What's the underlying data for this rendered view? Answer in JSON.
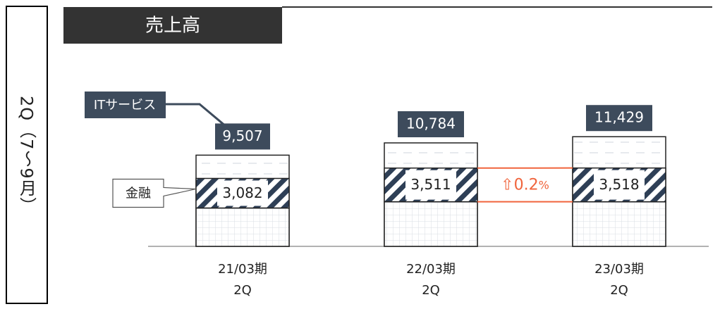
{
  "chart_data": {
    "type": "stacked_bar",
    "title": "売上高",
    "side_label": "2Q（7～9月）",
    "categories": [
      [
        "21/03期",
        "2Q"
      ],
      [
        "22/03期",
        "2Q"
      ],
      [
        "23/03期",
        "2Q"
      ]
    ],
    "totals": {
      "name": "ITサービス",
      "values": [
        9507,
        10784,
        11429
      ],
      "value_labels": [
        "9,507",
        "10,784",
        "11,429"
      ],
      "color": "#3d4b5c"
    },
    "finance": {
      "name": "金融",
      "values": [
        3082,
        3511,
        3518
      ],
      "value_labels": [
        "3,082",
        "3,511",
        "3,518"
      ],
      "color": "#2e3f56"
    },
    "base": {
      "values": [
        4000,
        4650,
        4650
      ]
    },
    "growth": {
      "arrow": "⇧",
      "value": 0.2,
      "unit": "%",
      "color": "#f0643c"
    }
  }
}
